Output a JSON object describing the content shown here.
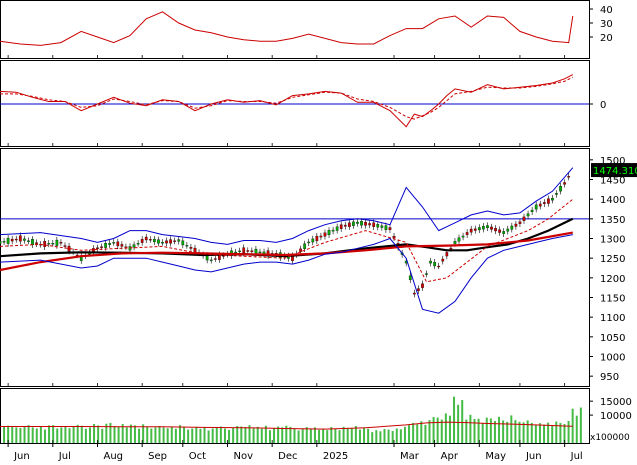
{
  "chart_data": [
    {
      "type": "line",
      "panel": "adx",
      "y_ticks": [
        20,
        30,
        40
      ],
      "ylim": [
        5,
        45
      ],
      "series": [
        {
          "color": "#cc0000",
          "style": "solid",
          "x": [
            0,
            5,
            10,
            15,
            20,
            24,
            28,
            32,
            36,
            40,
            44,
            48,
            52,
            56,
            60,
            64,
            68,
            72,
            76,
            80,
            84,
            88,
            92,
            96,
            100,
            104,
            108,
            112,
            116,
            120,
            124,
            128,
            132,
            136,
            140,
            141
          ],
          "y": [
            17,
            15,
            14,
            16,
            24,
            20,
            16,
            21,
            33,
            38,
            30,
            25,
            23,
            20,
            18,
            17,
            17,
            19,
            22,
            19,
            16,
            15,
            15,
            21,
            26,
            26,
            33,
            35,
            27,
            35,
            34,
            24,
            20,
            17,
            16,
            35
          ]
        }
      ]
    },
    {
      "type": "line",
      "panel": "oscillator",
      "y_ticks": [
        0
      ],
      "ylim": [
        -50,
        50
      ],
      "series": [
        {
          "color": "#cc0000",
          "style": "solid",
          "x": [
            0,
            4,
            8,
            12,
            16,
            20,
            24,
            28,
            32,
            36,
            40,
            44,
            48,
            52,
            56,
            60,
            64,
            68,
            72,
            76,
            80,
            84,
            88,
            92,
            96,
            100,
            102,
            104,
            106,
            108,
            110,
            112,
            116,
            120,
            124,
            128,
            132,
            136,
            139,
            141
          ],
          "y": [
            15,
            14,
            8,
            3,
            3,
            -8,
            0,
            8,
            1,
            -2,
            5,
            3,
            -8,
            0,
            5,
            2,
            4,
            -1,
            10,
            12,
            15,
            13,
            2,
            2,
            -8,
            -27,
            -12,
            -15,
            -8,
            0,
            10,
            18,
            14,
            23,
            18,
            20,
            22,
            25,
            30,
            35
          ]
        },
        {
          "color": "#cc0000",
          "style": "dashed",
          "x": [
            0,
            4,
            8,
            12,
            16,
            20,
            24,
            28,
            32,
            36,
            40,
            44,
            48,
            52,
            56,
            60,
            64,
            68,
            72,
            76,
            80,
            84,
            88,
            92,
            96,
            100,
            102,
            104,
            106,
            108,
            110,
            112,
            116,
            120,
            124,
            128,
            132,
            136,
            139,
            141
          ],
          "y": [
            12,
            12,
            9,
            5,
            3,
            -4,
            -2,
            6,
            3,
            -1,
            4,
            3,
            -5,
            -2,
            4,
            3,
            3,
            1,
            8,
            11,
            14,
            13,
            6,
            3,
            -4,
            -15,
            -18,
            -14,
            -10,
            -4,
            4,
            12,
            15,
            20,
            19,
            19,
            21,
            24,
            27,
            32
          ]
        }
      ]
    },
    {
      "type": "line",
      "panel": "price",
      "last_value": "1474.310",
      "y_ticks": [
        950,
        1000,
        1050,
        1100,
        1150,
        1200,
        1250,
        1300,
        1350,
        1400,
        1450,
        1500
      ],
      "ylim": [
        925,
        1525
      ],
      "horizontal_line": 1350,
      "series": [
        {
          "name": "",
          "color": "#00aa00",
          "style": "candles",
          "x": [
            0,
            5,
            10,
            15,
            20,
            24,
            28,
            32,
            36,
            40,
            44,
            48,
            52,
            56,
            60,
            64,
            68,
            72,
            76,
            80,
            84,
            88,
            92,
            96,
            100,
            102,
            104,
            106,
            108,
            110,
            112,
            116,
            120,
            124,
            128,
            132,
            136,
            139,
            141
          ],
          "y": [
            1290,
            1300,
            1285,
            1290,
            1250,
            1275,
            1290,
            1275,
            1300,
            1290,
            1295,
            1270,
            1245,
            1260,
            1270,
            1265,
            1260,
            1250,
            1290,
            1310,
            1330,
            1340,
            1335,
            1325,
            1240,
            1160,
            1180,
            1240,
            1230,
            1260,
            1290,
            1320,
            1330,
            1315,
            1340,
            1380,
            1400,
            1440,
            1474
          ]
        },
        {
          "name": "",
          "color": "#000000",
          "style": "solid",
          "x": [
            0,
            10,
            20,
            30,
            40,
            50,
            60,
            70,
            80,
            90,
            100,
            105,
            110,
            115,
            120,
            125,
            130,
            135,
            141
          ],
          "y": [
            1255,
            1262,
            1265,
            1264,
            1262,
            1258,
            1260,
            1255,
            1262,
            1275,
            1285,
            1278,
            1270,
            1270,
            1278,
            1285,
            1300,
            1320,
            1350
          ]
        },
        {
          "name": "",
          "color": "#cc0000",
          "style": "solid",
          "x": [
            0,
            10,
            20,
            30,
            40,
            50,
            60,
            70,
            80,
            90,
            100,
            110,
            120,
            130,
            141
          ],
          "y": [
            1220,
            1240,
            1255,
            1262,
            1264,
            1262,
            1260,
            1258,
            1262,
            1270,
            1280,
            1282,
            1285,
            1295,
            1315
          ]
        },
        {
          "name": "",
          "color": "#cc0000",
          "style": "dashed",
          "x": [
            0,
            10,
            20,
            30,
            40,
            50,
            60,
            70,
            80,
            90,
            100,
            105,
            110,
            115,
            120,
            125,
            130,
            135,
            141
          ],
          "y": [
            1280,
            1285,
            1270,
            1275,
            1280,
            1260,
            1255,
            1250,
            1290,
            1320,
            1290,
            1190,
            1200,
            1240,
            1280,
            1300,
            1320,
            1350,
            1400
          ]
        },
        {
          "name": "",
          "color": "#0000cc",
          "style": "solid",
          "x": [
            0,
            10,
            20,
            24,
            28,
            32,
            36,
            40,
            44,
            48,
            52,
            56,
            60,
            64,
            68,
            72,
            76,
            80,
            84,
            88,
            92,
            96,
            100,
            104,
            108,
            112,
            116,
            120,
            124,
            128,
            132,
            136,
            141
          ],
          "y": [
            1310,
            1315,
            1300,
            1290,
            1300,
            1320,
            1320,
            1310,
            1305,
            1300,
            1290,
            1285,
            1295,
            1295,
            1290,
            1300,
            1320,
            1335,
            1345,
            1350,
            1345,
            1335,
            1430,
            1380,
            1320,
            1340,
            1360,
            1370,
            1360,
            1365,
            1395,
            1420,
            1480
          ]
        },
        {
          "name": "",
          "color": "#0000cc",
          "style": "solid",
          "x": [
            0,
            10,
            20,
            24,
            28,
            32,
            36,
            40,
            44,
            48,
            52,
            56,
            60,
            64,
            68,
            72,
            76,
            80,
            84,
            88,
            92,
            96,
            100,
            104,
            108,
            112,
            116,
            120,
            124,
            128,
            132,
            136,
            141
          ],
          "y": [
            1240,
            1245,
            1225,
            1230,
            1250,
            1250,
            1250,
            1240,
            1230,
            1220,
            1215,
            1225,
            1235,
            1240,
            1240,
            1235,
            1245,
            1260,
            1265,
            1275,
            1285,
            1300,
            1250,
            1120,
            1110,
            1140,
            1200,
            1250,
            1270,
            1280,
            1290,
            1300,
            1310
          ]
        }
      ]
    },
    {
      "type": "bar",
      "panel": "volume",
      "unit": "x100000",
      "y_ticks": [
        10000,
        15000
      ],
      "ylim": [
        0,
        19000
      ],
      "bar_color": "#44bb44",
      "average_line_color": "#cc0000",
      "values": [
        5800,
        6200,
        5900,
        5600,
        5400,
        5900,
        6400,
        5600,
        5200,
        5800,
        4800,
        6300,
        6400,
        5200,
        5600,
        6100,
        5300,
        5900,
        6500,
        6200,
        5100,
        5600,
        6800,
        6300,
        5100,
        6900,
        7200,
        6100,
        5900,
        6800,
        5600,
        6600,
        6300,
        5100,
        6700,
        5900,
        5200,
        5600,
        6100,
        5600,
        5300,
        5800,
        5100,
        6400,
        5600,
        4800,
        5200,
        5800,
        5100,
        5700,
        4500,
        5200,
        5600,
        5900,
        5200,
        4700,
        5400,
        6100,
        5900,
        5700,
        6400,
        5300,
        5800,
        5100,
        6200,
        4600,
        5200,
        5900,
        5600,
        6200,
        5800,
        5300,
        4500,
        5100,
        5700,
        5200,
        5600,
        4700,
        5200,
        4600,
        5700,
        5100,
        4600,
        5800,
        5400,
        5200,
        6100,
        4800,
        5600,
        5100,
        3900,
        4600,
        4200,
        5000,
        4800,
        4300,
        5200,
        4900,
        5800,
        6400,
        7200,
        6700,
        7800,
        6500,
        8200,
        9300,
        9100,
        8400,
        10600,
        9800,
        16600,
        13700,
        15400,
        8400,
        10100,
        8600,
        8700,
        7200,
        9100,
        8800,
        7900,
        9400,
        8100,
        7600,
        9900,
        8200,
        7600,
        7400,
        8100,
        7200,
        6600,
        7100,
        6600,
        7300,
        6400,
        7700,
        7200,
        6800,
        7900,
        12300,
        9800,
        12700
      ],
      "average_line": [
        5900,
        5900,
        5900,
        5800,
        5800,
        5600,
        5500,
        5200,
        5000,
        5500,
        6500,
        7200,
        7500,
        7300,
        7000,
        6800,
        6600,
        6300,
        6100,
        6000
      ],
      "average_x": [
        0,
        10,
        20,
        30,
        40,
        50,
        60,
        70,
        80,
        90,
        100,
        105,
        110,
        115,
        120,
        125,
        130,
        135,
        139,
        141
      ]
    }
  ],
  "x_axis": {
    "months": [
      {
        "label": "Jun",
        "x": 2
      },
      {
        "label": "Jul",
        "x": 13
      },
      {
        "label": "Aug",
        "x": 24
      },
      {
        "label": "Sep",
        "x": 35
      },
      {
        "label": "Oct",
        "x": 45
      },
      {
        "label": "Nov",
        "x": 56
      },
      {
        "label": "Dec",
        "x": 67
      },
      {
        "label": "2025",
        "x": 78
      },
      {
        "label": "Mar",
        "x": 97
      },
      {
        "label": "Apr",
        "x": 107
      },
      {
        "label": "May",
        "x": 118
      },
      {
        "label": "Jun",
        "x": 128
      },
      {
        "label": "Jul",
        "x": 139
      }
    ],
    "range": [
      0,
      145
    ]
  }
}
